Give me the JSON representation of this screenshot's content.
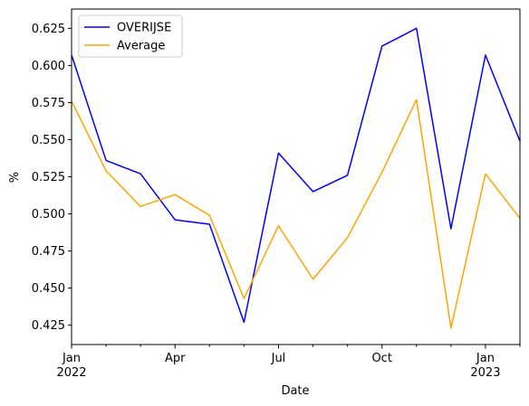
{
  "chart_data": {
    "type": "line",
    "x": [
      "2022-01",
      "2022-02",
      "2022-03",
      "2022-04",
      "2022-05",
      "2022-06",
      "2022-07",
      "2022-08",
      "2022-09",
      "2022-10",
      "2022-11",
      "2022-12",
      "2023-01",
      "2023-02"
    ],
    "series": [
      {
        "name": "OVERIJSE",
        "color": "#0000ff",
        "values": [
          0.607,
          0.536,
          0.527,
          0.496,
          0.493,
          0.427,
          0.541,
          0.515,
          0.526,
          0.613,
          0.625,
          0.49,
          0.607,
          0.549
        ]
      },
      {
        "name": "Average",
        "color": "#ffa500",
        "values": [
          0.576,
          0.529,
          0.505,
          0.513,
          0.499,
          0.443,
          0.492,
          0.456,
          0.484,
          0.528,
          0.577,
          0.423,
          0.527,
          0.497
        ]
      }
    ],
    "xlabel": "Date",
    "ylabel": "%",
    "ylim": [
      0.412,
      0.638
    ],
    "yticks": [
      "0.425",
      "0.450",
      "0.475",
      "0.500",
      "0.525",
      "0.550",
      "0.575",
      "0.600",
      "0.625"
    ],
    "xticks_major": [
      {
        "x": "2022-01",
        "label": "Jan",
        "year": "2022"
      },
      {
        "x": "2022-04",
        "label": "Apr",
        "year": ""
      },
      {
        "x": "2022-07",
        "label": "Jul",
        "year": ""
      },
      {
        "x": "2022-10",
        "label": "Oct",
        "year": ""
      },
      {
        "x": "2023-01",
        "label": "Jan",
        "year": "2023"
      }
    ],
    "legend_position": "top-left",
    "grid": false
  }
}
